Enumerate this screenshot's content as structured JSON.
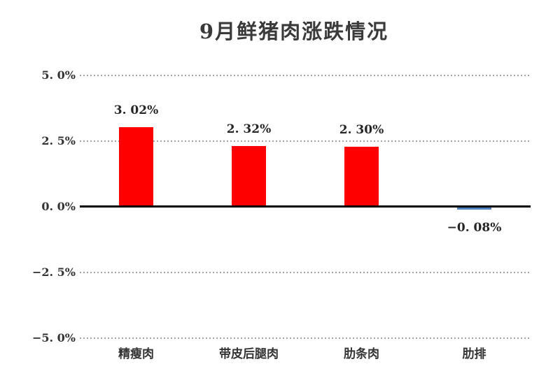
{
  "page": {
    "background": "#ffffff"
  },
  "chart_data": {
    "type": "bar",
    "title": "9月鲜猪肉涨跌情况",
    "categories": [
      "精瘦肉",
      "带皮后腿肉",
      "肋条肉",
      "肋排"
    ],
    "values": [
      3.02,
      2.32,
      2.3,
      -0.08
    ],
    "value_labels": [
      "3. 02%",
      "2. 32%",
      "2. 30%",
      "−0. 08%"
    ],
    "y_ticks": [
      {
        "value": 5.0,
        "label": "5. 0%"
      },
      {
        "value": 2.5,
        "label": "2. 5%"
      },
      {
        "value": 0.0,
        "label": "0. 0%"
      },
      {
        "value": -2.5,
        "label": "−2. 5%"
      },
      {
        "value": -5.0,
        "label": "−5. 0%"
      }
    ],
    "ylim": [
      -5.0,
      5.0
    ],
    "xlabel": "",
    "ylabel": "",
    "legend": "none",
    "grid": "horizontal-dotted",
    "bar_colors": [
      "#ff0000",
      "#ff0000",
      "#ff0000",
      "#4f81bd"
    ],
    "axis_color": "#000000",
    "gridline_color": "#a3a3a3",
    "tick_label_color": "#333333",
    "value_label_color": "#262626"
  }
}
